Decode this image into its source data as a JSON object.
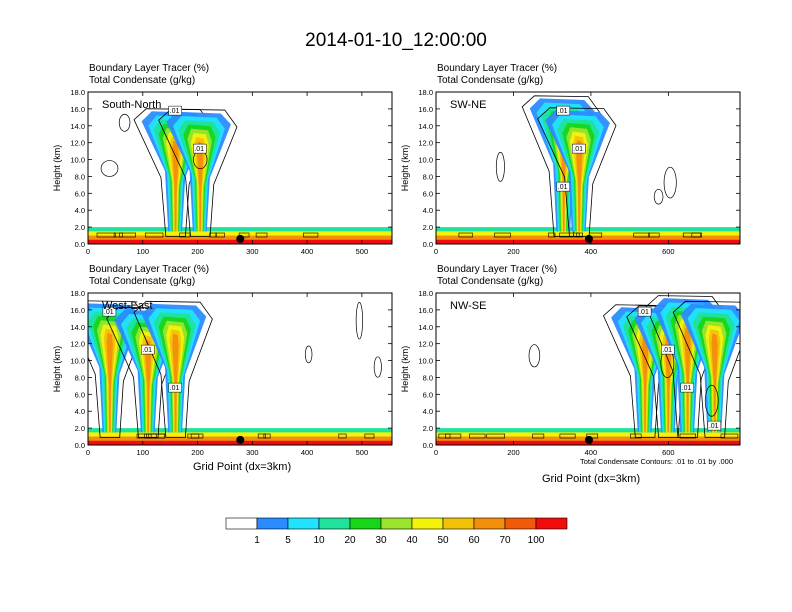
{
  "figure_title": "2014-01-10_12:00:00",
  "colors": {
    "levels": [
      "#ffffff",
      "#2a8cff",
      "#22e3ff",
      "#1fe39a",
      "#17d617",
      "#9ae52c",
      "#f2f20b",
      "#f2c20b",
      "#f28f0b",
      "#f25a0b",
      "#f20b0b"
    ]
  },
  "chart_data": [
    {
      "type": "heatmap",
      "id": "south-north",
      "label": "South-North",
      "title_line1": "Boundary Layer Tracer   (%)",
      "title_line2": "Total Condensate   (g/kg)",
      "ylabel": "Height (km)",
      "xlabel": "",
      "xlim": [
        0,
        555
      ],
      "ylim": [
        0,
        18
      ],
      "xticks": [
        "0",
        "100",
        "200",
        "300",
        "400",
        "500"
      ],
      "xtick_values": [
        0,
        100,
        200,
        300,
        400,
        500
      ],
      "yticks": [
        "0.0",
        "2.0",
        "4.0",
        "6.0",
        "8.0",
        "10.0",
        "12.0",
        "14.0",
        "16.0",
        "18.0"
      ],
      "marker_x": 278,
      "contour_labels": [
        ".01",
        ".01"
      ],
      "convection_centers_x": [
        160,
        205
      ],
      "convection_top_km": 17.5
    },
    {
      "type": "heatmap",
      "id": "sw-ne",
      "label": "SW-NE",
      "title_line1": "Boundary Layer Tracer   (%)",
      "title_line2": "Total Condensate   (g/kg)",
      "ylabel": "Height (km)",
      "xlabel": "",
      "xlim": [
        0,
        785
      ],
      "ylim": [
        0,
        18
      ],
      "xticks": [
        "0",
        "200",
        "400",
        "600"
      ],
      "xtick_values": [
        0,
        200,
        400,
        600
      ],
      "yticks": [
        "0.0",
        "2.0",
        "4.0",
        "6.0",
        "8.0",
        "10.0",
        "12.0",
        "14.0",
        "16.0",
        "18.0"
      ],
      "marker_x": 395,
      "contour_labels": [
        ".01",
        ".01",
        ".01"
      ],
      "convection_centers_x": [
        330,
        370
      ],
      "convection_top_km": 17.5
    },
    {
      "type": "heatmap",
      "id": "west-east",
      "label": "West-East",
      "title_line1": "Boundary Layer Tracer   (%)",
      "title_line2": "Total Condensate   (g/kg)",
      "ylabel": "Height (km)",
      "xlabel": "Grid Point (dx=3km)",
      "xlim": [
        0,
        555
      ],
      "ylim": [
        0,
        18
      ],
      "xticks": [
        "0",
        "100",
        "200",
        "300",
        "400",
        "500"
      ],
      "xtick_values": [
        0,
        100,
        200,
        300,
        400,
        500
      ],
      "yticks": [
        "0.0",
        "2.0",
        "4.0",
        "6.0",
        "8.0",
        "10.0",
        "12.0",
        "14.0",
        "16.0",
        "18.0"
      ],
      "marker_x": 278,
      "contour_labels": [
        ".01",
        ".01",
        ".01"
      ],
      "convection_centers_x": [
        40,
        110,
        160
      ],
      "convection_top_km": 17.5
    },
    {
      "type": "heatmap",
      "id": "nw-se",
      "label": "NW-SE",
      "title_line1": "Boundary Layer Tracer   (%)",
      "title_line2": "Total Condensate   (g/kg)",
      "ylabel": "Height (km)",
      "xlabel": "Grid Point (dx=3km)",
      "xlim": [
        0,
        785
      ],
      "ylim": [
        0,
        18
      ],
      "xticks": [
        "0",
        "200",
        "400",
        "600"
      ],
      "xtick_values": [
        0,
        200,
        400,
        600
      ],
      "yticks": [
        "0.0",
        "2.0",
        "4.0",
        "6.0",
        "8.0",
        "10.0",
        "12.0",
        "14.0",
        "16.0",
        "18.0"
      ],
      "marker_x": 395,
      "contour_labels": [
        ".01",
        ".01",
        ".01",
        ".01"
      ],
      "convection_centers_x": [
        540,
        600,
        650,
        720
      ],
      "convection_top_km": 17.5
    }
  ],
  "contour_note": "Total Condensate Contours: .01 to .01 by .000",
  "colorbar": {
    "labels": [
      "1",
      "5",
      "10",
      "20",
      "30",
      "40",
      "50",
      "60",
      "70",
      "100"
    ]
  }
}
